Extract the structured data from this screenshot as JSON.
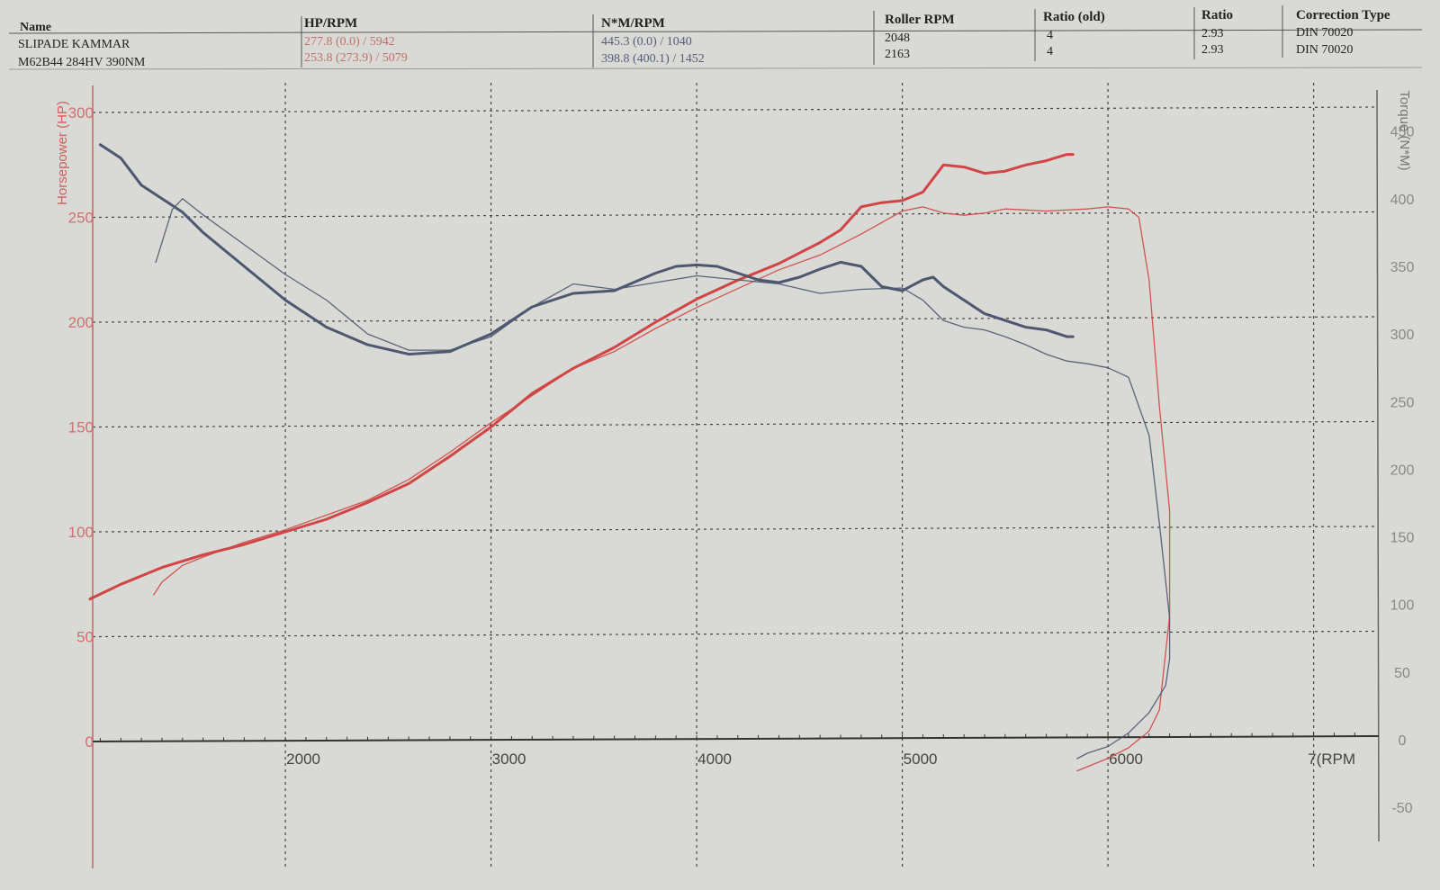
{
  "header": {
    "columns": [
      "Name",
      "HP/RPM",
      "N*M/RPM",
      "Roller RPM",
      "Ratio (old)",
      "Ratio",
      "Correction Type"
    ],
    "rows": [
      [
        "SLIPADE KAMMAR",
        "277.8 (0.0) / 5942",
        "445.3 (0.0) / 1040",
        "2048",
        "4",
        "2.93",
        "DIN 70020"
      ],
      [
        "M62B44 284HV 390NM",
        "253.8 (273.9) / 5079",
        "398.8 (400.1) / 1452",
        "2163",
        "4",
        "2.93",
        "DIN 70020"
      ]
    ]
  },
  "chart_data": {
    "type": "line",
    "xlabel": "RPM",
    "ylabel_left": "Horsepower (HP)",
    "ylabel_right": "Torque (N*M)",
    "x_ticks": [
      2000,
      3000,
      4000,
      5000,
      6000,
      7000
    ],
    "x_tick_labels": [
      "2000",
      "3000",
      "4000",
      "5000",
      "6000",
      "7(RPM"
    ],
    "y_left_ticks": [
      0,
      50,
      100,
      150,
      200,
      250,
      300
    ],
    "y_right_ticks": [
      -50,
      0,
      50,
      100,
      150,
      200,
      250,
      300,
      350,
      400,
      450
    ],
    "xlim": [
      1050,
      7200
    ],
    "ylim_left": [
      -60,
      310
    ],
    "ylim_right": [
      -100,
      484
    ],
    "grid": true,
    "colors": {
      "power": "#d04545",
      "torque": "#4d5870"
    },
    "series": [
      {
        "kind": "power",
        "weight": "bold",
        "axis": "left",
        "x": [
          1050,
          1200,
          1400,
          1600,
          1800,
          2000,
          2200,
          2400,
          2600,
          2800,
          3000,
          3200,
          3400,
          3600,
          3800,
          4000,
          4200,
          4400,
          4600,
          4700,
          4800,
          4900,
          5000,
          5100,
          5200,
          5300,
          5400,
          5500,
          5600,
          5700,
          5800,
          5830
        ],
        "y": [
          68,
          75,
          83,
          89,
          94,
          100,
          106,
          114,
          123,
          136,
          150,
          166,
          178,
          188,
          200,
          211,
          220,
          228,
          238,
          244,
          255,
          257,
          258,
          262,
          275,
          274,
          271,
          272,
          275,
          277,
          280,
          280
        ]
      },
      {
        "kind": "power",
        "weight": "thin",
        "axis": "left",
        "x": [
          1360,
          1400,
          1500,
          1600,
          1800,
          2000,
          2200,
          2400,
          2600,
          2800,
          3000,
          3200,
          3400,
          3600,
          3800,
          4000,
          4200,
          4400,
          4600,
          4800,
          5000,
          5100,
          5200,
          5300,
          5400,
          5500,
          5700,
          5900,
          6000,
          6100,
          6150,
          6200,
          6250,
          6300,
          6300,
          6250,
          6200,
          6100,
          6000,
          5900,
          5850
        ],
        "y": [
          70,
          76,
          84,
          88,
          95,
          101,
          108,
          115,
          125,
          138,
          152,
          165,
          178,
          186,
          197,
          207,
          216,
          225,
          232,
          242,
          253,
          255,
          252,
          251,
          252,
          254,
          253,
          254,
          255,
          254,
          250,
          220,
          160,
          110,
          60,
          15,
          5,
          -3,
          -8,
          -12,
          -14
        ]
      },
      {
        "kind": "torque",
        "weight": "bold",
        "axis": "right",
        "x": [
          1100,
          1200,
          1300,
          1400,
          1500,
          1600,
          1800,
          2000,
          2200,
          2400,
          2600,
          2800,
          3000,
          3200,
          3400,
          3600,
          3800,
          3900,
          4000,
          4100,
          4200,
          4300,
          4400,
          4500,
          4600,
          4700,
          4800,
          4900,
          5000,
          5100,
          5150,
          5200,
          5300,
          5400,
          5500,
          5600,
          5700,
          5800,
          5830
        ],
        "y": [
          440,
          430,
          410,
          400,
          390,
          375,
          350,
          325,
          305,
          292,
          285,
          287,
          300,
          320,
          330,
          332,
          345,
          350,
          351,
          350,
          345,
          340,
          338,
          342,
          348,
          353,
          350,
          335,
          332,
          340,
          342,
          335,
          325,
          315,
          310,
          305,
          303,
          298,
          298
        ]
      },
      {
        "kind": "torque",
        "weight": "thin",
        "axis": "right",
        "x": [
          1370,
          1450,
          1500,
          1600,
          1800,
          2000,
          2200,
          2400,
          2600,
          2800,
          3000,
          3200,
          3400,
          3600,
          3800,
          4000,
          4200,
          4400,
          4600,
          4800,
          5000,
          5100,
          5200,
          5300,
          5400,
          5500,
          5600,
          5700,
          5800,
          5900,
          6000,
          6100,
          6200,
          6250,
          6300,
          6300,
          6280,
          6200,
          6100,
          6000,
          5900,
          5850
        ],
        "y": [
          353,
          392,
          400,
          388,
          366,
          344,
          325,
          300,
          288,
          288,
          298,
          320,
          337,
          333,
          338,
          343,
          340,
          337,
          330,
          333,
          334,
          325,
          310,
          305,
          303,
          298,
          292,
          285,
          280,
          278,
          275,
          268,
          225,
          160,
          90,
          60,
          40,
          20,
          5,
          -5,
          -10,
          -14
        ]
      }
    ]
  }
}
